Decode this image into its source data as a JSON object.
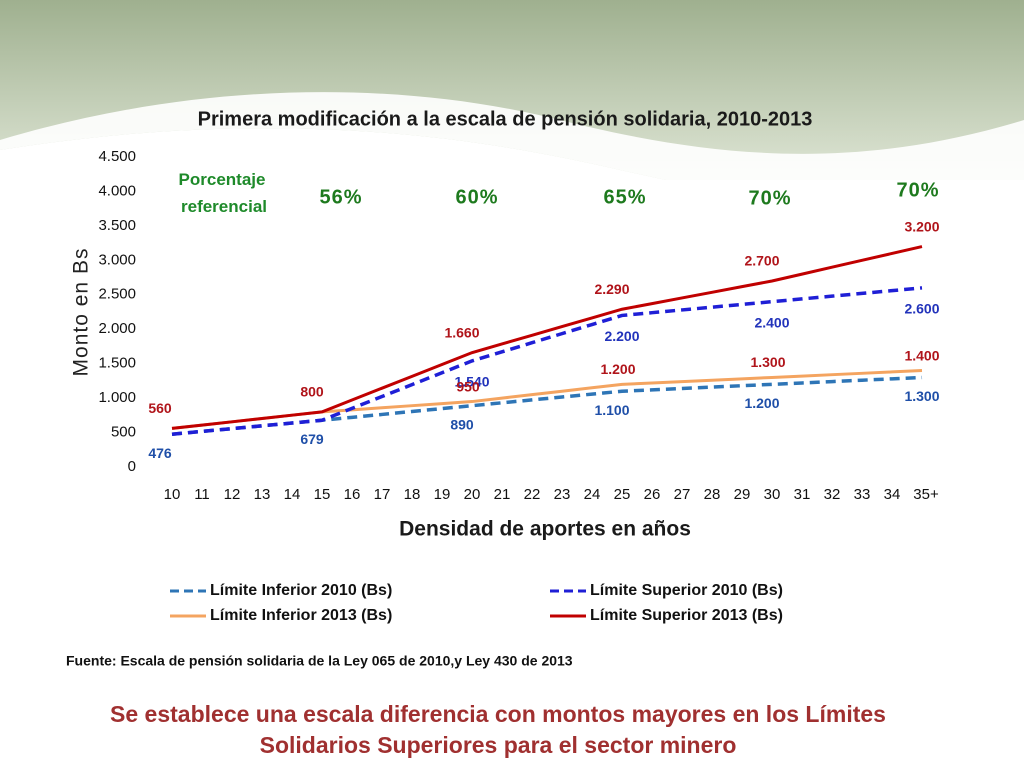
{
  "chart_data": {
    "type": "line",
    "title": "Primera modificación a la escala de pensión solidaria, 2010-2013",
    "x_label": "Densidad de aportes en años",
    "y_label": "Monto en Bs",
    "categories": [
      "10",
      "11",
      "12",
      "13",
      "14",
      "15",
      "16",
      "17",
      "18",
      "19",
      "20",
      "21",
      "22",
      "23",
      "24",
      "25",
      "26",
      "27",
      "28",
      "29",
      "30",
      "31",
      "32",
      "33",
      "34",
      "35+"
    ],
    "ylim": [
      0,
      4500
    ],
    "yticks": [
      0,
      500,
      {
        "value": 1000,
        "label": "1.000"
      },
      {
        "value": 1500,
        "label": "1.500"
      },
      {
        "value": 2000,
        "label": "2.000"
      },
      {
        "value": 2500,
        "label": "2.500"
      },
      {
        "value": 3000,
        "label": "3.000"
      },
      {
        "value": 3500,
        "label": "3.500"
      },
      {
        "value": 4000,
        "label": "4.000"
      },
      {
        "value": 4500,
        "label": "4.500"
      }
    ],
    "grid": false,
    "annotations": [
      "Porcentaje referencial",
      "56%",
      "60%",
      "65%",
      "70%",
      "70%"
    ],
    "series": [
      {
        "name": "Límite Inferior 2010 (Bs)",
        "color": "#2e75b6",
        "dashed": true,
        "values": [
          476,
          517,
          557,
          598,
          638,
          679,
          721,
          763,
          806,
          848,
          890,
          932,
          974,
          1016,
          1058,
          1100,
          1120,
          1140,
          1160,
          1180,
          1200,
          1220,
          1240,
          1260,
          1280,
          1300
        ],
        "value_labels": [
          "476",
          null,
          null,
          null,
          null,
          "679",
          null,
          null,
          null,
          null,
          "890",
          null,
          null,
          null,
          null,
          "1.100",
          null,
          null,
          null,
          null,
          "1.200",
          null,
          null,
          null,
          null,
          "1.300"
        ]
      },
      {
        "name": "Límite Superior 2010 (Bs)",
        "color": "#1f1fd6",
        "dashed": true,
        "values": [
          476,
          517,
          557,
          598,
          638,
          679,
          851,
          1023,
          1196,
          1368,
          1540,
          1672,
          1804,
          1936,
          2068,
          2200,
          2240,
          2280,
          2320,
          2360,
          2400,
          2440,
          2480,
          2520,
          2560,
          2600
        ],
        "value_labels": [
          null,
          null,
          null,
          null,
          null,
          null,
          null,
          null,
          null,
          null,
          "1.540",
          null,
          null,
          null,
          null,
          "2.200",
          null,
          null,
          null,
          null,
          "2.400",
          null,
          null,
          null,
          null,
          "2.600"
        ]
      },
      {
        "name": "Límite Inferior 2013 (Bs)",
        "color": "#f4a460",
        "dashed": false,
        "values": [
          560,
          608,
          656,
          704,
          752,
          800,
          830,
          860,
          890,
          920,
          950,
          1000,
          1050,
          1100,
          1150,
          1200,
          1220,
          1240,
          1260,
          1280,
          1300,
          1320,
          1340,
          1360,
          1380,
          1400
        ],
        "value_labels": [
          null,
          null,
          null,
          null,
          null,
          null,
          null,
          null,
          null,
          null,
          "950",
          null,
          null,
          null,
          null,
          "1.200",
          null,
          null,
          null,
          null,
          "1.300",
          null,
          null,
          null,
          null,
          "1.400"
        ]
      },
      {
        "name": "Límite Superior 2013 (Bs)",
        "color": "#c00000",
        "dashed": false,
        "values": [
          560,
          608,
          656,
          704,
          752,
          800,
          972,
          1144,
          1316,
          1488,
          1660,
          1786,
          1912,
          2038,
          2164,
          2290,
          2372,
          2454,
          2536,
          2618,
          2700,
          2800,
          2900,
          3000,
          3100,
          3200
        ],
        "value_labels": [
          "560",
          null,
          null,
          null,
          null,
          "800",
          null,
          null,
          null,
          null,
          "1.660",
          null,
          null,
          null,
          null,
          "2.290",
          null,
          null,
          null,
          null,
          "2.700",
          null,
          null,
          null,
          null,
          "3.200"
        ]
      }
    ],
    "source": "Fuente: Escala de pensión solidaria de la Ley 065 de 2010,y Ley 430  de 2013",
    "conclusion": [
      "Se establece una escala diferencia con montos mayores en los Límites",
      "Solidarios Superiores para el sector minero"
    ]
  }
}
